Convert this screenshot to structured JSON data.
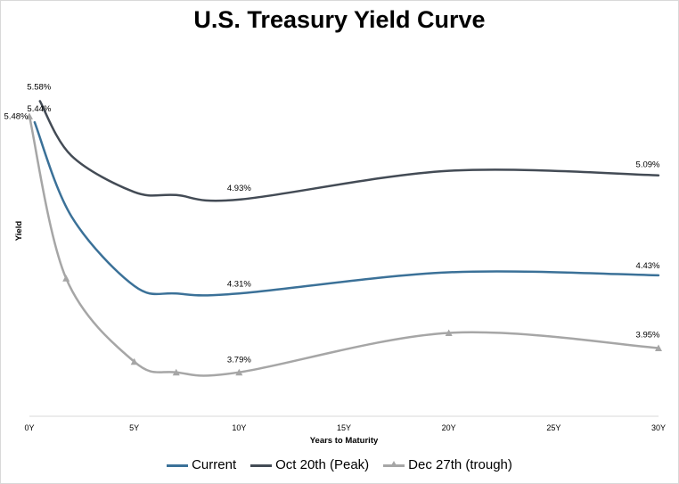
{
  "chart_data": {
    "type": "line",
    "title": "U.S. Treasury Yield Curve",
    "xlabel": "Years to Maturity",
    "ylabel": "Yield",
    "x_ticks": [
      {
        "value": 0,
        "label": "0Y"
      },
      {
        "value": 5,
        "label": "5Y"
      },
      {
        "value": 10,
        "label": "10Y"
      },
      {
        "value": 15,
        "label": "15Y"
      },
      {
        "value": 20,
        "label": "20Y"
      },
      {
        "value": 25,
        "label": "25Y"
      },
      {
        "value": 30,
        "label": "30Y"
      }
    ],
    "xlim": [
      0,
      30
    ],
    "ylim": [
      3.5,
      5.7
    ],
    "legend_position": "bottom",
    "series": [
      {
        "name": "Current",
        "color": "#3b7198",
        "marker": "none",
        "x": [
          0.25,
          2,
          5,
          7,
          10,
          20,
          30
        ],
        "values": [
          5.44,
          4.82,
          4.36,
          4.31,
          4.31,
          4.45,
          4.43
        ],
        "labels": [
          {
            "x": 0.25,
            "value": 5.44,
            "text": "5.44%"
          },
          {
            "x": 10,
            "value": 4.31,
            "text": "4.31%"
          },
          {
            "x": 30,
            "value": 4.43,
            "text": "4.43%"
          }
        ]
      },
      {
        "name": "Oct 20th (Peak)",
        "color": "#434b55",
        "marker": "none",
        "x": [
          0.5,
          2,
          5,
          7,
          10,
          20,
          30
        ],
        "values": [
          5.58,
          5.22,
          4.98,
          4.96,
          4.93,
          5.12,
          5.09
        ],
        "labels": [
          {
            "x": 0.5,
            "value": 5.58,
            "text": "5.58%"
          },
          {
            "x": 10,
            "value": 4.93,
            "text": "4.93%"
          },
          {
            "x": 30,
            "value": 5.09,
            "text": "5.09%"
          }
        ]
      },
      {
        "name": "Dec 27th (trough)",
        "color": "#a6a6a6",
        "marker": "triangle",
        "x": [
          0,
          1.75,
          5,
          7,
          10,
          20,
          30
        ],
        "values": [
          5.48,
          4.41,
          3.86,
          3.79,
          3.79,
          4.05,
          3.95
        ],
        "labels": [
          {
            "x": 0,
            "value": 5.48,
            "text": "5.48%"
          },
          {
            "x": 10,
            "value": 3.79,
            "text": "3.79%"
          },
          {
            "x": 30,
            "value": 3.95,
            "text": "3.95%"
          }
        ]
      }
    ]
  }
}
